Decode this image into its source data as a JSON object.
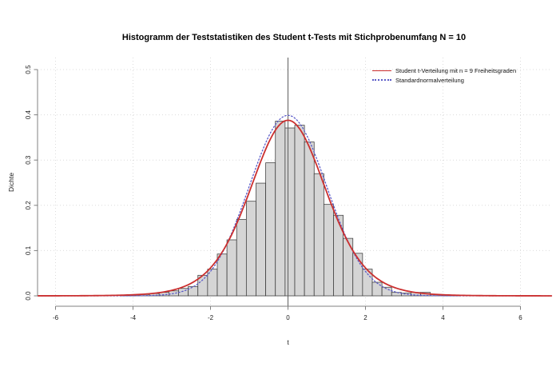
{
  "title": "Histogramm der Teststatistiken des Student t-Tests mit Stichprobenumfang N = 10",
  "axes": {
    "x": {
      "label": "t",
      "range": [
        -6.46,
        6.8
      ],
      "ticks": [
        {
          "v": -6,
          "label": "-6"
        },
        {
          "v": -4,
          "label": "-4"
        },
        {
          "v": -2,
          "label": "-2"
        },
        {
          "v": 0,
          "label": "0"
        },
        {
          "v": 2,
          "label": "2"
        },
        {
          "v": 4,
          "label": "4"
        },
        {
          "v": 6,
          "label": "6"
        }
      ]
    },
    "y": {
      "label": "Dichte",
      "range": [
        0,
        0.52
      ],
      "ticks": [
        {
          "v": 0,
          "label": "0.0"
        },
        {
          "v": 0.1,
          "label": "0.1"
        },
        {
          "v": 0.2,
          "label": "0.2"
        },
        {
          "v": 0.3,
          "label": "0.3"
        },
        {
          "v": 0.4,
          "label": "0.4"
        },
        {
          "v": 0.5,
          "label": "0.5"
        }
      ]
    },
    "grid": true
  },
  "legend": {
    "position": "top-right",
    "items": [
      {
        "label": "Student t-Verteilung mit n = 9 Freiheitsgraden",
        "style": "solid",
        "color": "#cb2f2f"
      },
      {
        "label": "Standardnormalverteilung",
        "style": "dotted",
        "color": "#5b5bc8"
      }
    ]
  },
  "chart_data": {
    "type": "bar",
    "subtype": "histogram-with-density-curves",
    "histogram": {
      "bin_width": 0.25,
      "bins": [
        {
          "t0": -4.325,
          "density": 0.001
        },
        {
          "t0": -4.075,
          "density": 0.002
        },
        {
          "t0": -3.825,
          "density": 0.003
        },
        {
          "t0": -3.575,
          "density": 0.005
        },
        {
          "t0": -3.325,
          "density": 0.0076
        },
        {
          "t0": -3.075,
          "density": 0.011
        },
        {
          "t0": -2.825,
          "density": 0.0164
        },
        {
          "t0": -2.575,
          "density": 0.0207
        },
        {
          "t0": -2.325,
          "density": 0.0454
        },
        {
          "t0": -2.075,
          "density": 0.0589
        },
        {
          "t0": -1.825,
          "density": 0.0924
        },
        {
          "t0": -1.575,
          "density": 0.1237
        },
        {
          "t0": -1.325,
          "density": 0.169
        },
        {
          "t0": -1.075,
          "density": 0.209
        },
        {
          "t0": -0.825,
          "density": 0.249
        },
        {
          "t0": -0.575,
          "density": 0.294
        },
        {
          "t0": -0.325,
          "density": 0.386
        },
        {
          "t0": -0.075,
          "density": 0.371
        },
        {
          "t0": 0.175,
          "density": 0.377
        },
        {
          "t0": 0.425,
          "density": 0.34
        },
        {
          "t0": 0.675,
          "density": 0.27
        },
        {
          "t0": 0.925,
          "density": 0.202
        },
        {
          "t0": 1.175,
          "density": 0.178
        },
        {
          "t0": 1.425,
          "density": 0.127
        },
        {
          "t0": 1.675,
          "density": 0.094
        },
        {
          "t0": 1.925,
          "density": 0.059
        },
        {
          "t0": 2.175,
          "density": 0.03
        },
        {
          "t0": 2.425,
          "density": 0.019
        },
        {
          "t0": 2.675,
          "density": 0.0076
        },
        {
          "t0": 2.925,
          "density": 0.006
        },
        {
          "t0": 3.175,
          "density": 0.0076
        },
        {
          "t0": 3.425,
          "density": 0.0076
        },
        {
          "t0": 3.675,
          "density": 0.003
        },
        {
          "t0": 3.925,
          "density": 0.002
        },
        {
          "t0": 4.175,
          "density": 0.0015
        }
      ]
    },
    "curves": [
      {
        "name": "Student t-Verteilung mit n = 9 Freiheitsgraden",
        "distribution": "student_t",
        "df": 9,
        "peak_density": 0.388,
        "style": "solid",
        "color": "#cb2f2f"
      },
      {
        "name": "Standardnormalverteilung",
        "distribution": "normal",
        "mean": 0,
        "sd": 1,
        "peak_density": 0.3989,
        "style": "dotted",
        "color": "#5b5bc8"
      }
    ],
    "reference_vline_x": 0
  },
  "colors": {
    "background": "#ffffff",
    "bar_fill": "#d5d5d5",
    "bar_stroke": "#3a3a3a",
    "axis": "#808080",
    "tick_text": "#1a1a1a",
    "grid": "#dcdcdc",
    "vline": "#5f5f5f",
    "t_curve": "#cb2f2f",
    "normal_curve": "#5b5bc8"
  }
}
